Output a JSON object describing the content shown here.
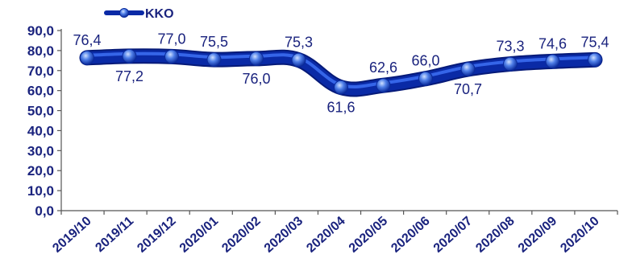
{
  "chart_data": {
    "type": "line",
    "title": "",
    "xlabel": "",
    "ylabel": "",
    "categories": [
      "2019/10",
      "2019/11",
      "2019/12",
      "2020/01",
      "2020/02",
      "2020/03",
      "2020/04",
      "2020/05",
      "2020/06",
      "2020/07",
      "2020/08",
      "2020/09",
      "2020/10"
    ],
    "series": [
      {
        "name": "KKO",
        "values": [
          76.4,
          77.2,
          77.0,
          75.5,
          76.0,
          75.3,
          61.6,
          62.6,
          66.0,
          70.7,
          73.3,
          74.6,
          75.4
        ],
        "labels": [
          "76,4",
          "77,2",
          "77,0",
          "75,5",
          "76,0",
          "75,3",
          "61,6",
          "62,6",
          "66,0",
          "70,7",
          "73,3",
          "74,6",
          "75,4"
        ],
        "label_side": [
          "above",
          "below",
          "above",
          "above",
          "below",
          "above",
          "below",
          "above",
          "above",
          "below",
          "above",
          "above",
          "above"
        ]
      }
    ],
    "ylim": [
      0,
      90
    ],
    "yticks": [
      0,
      10,
      20,
      30,
      40,
      50,
      60,
      70,
      80,
      90
    ],
    "ytick_labels": [
      "0,0",
      "10,0",
      "20,0",
      "30,0",
      "40,0",
      "50,0",
      "60,0",
      "70,0",
      "80,0",
      "90,0"
    ],
    "grid": false,
    "legend": {
      "position": "top-left",
      "entries": [
        "KKO"
      ]
    },
    "colors": {
      "line": "#0a2aa6",
      "line_highlight": "#3a6cf0",
      "text": "#1a237e",
      "axis": "#555555"
    }
  }
}
